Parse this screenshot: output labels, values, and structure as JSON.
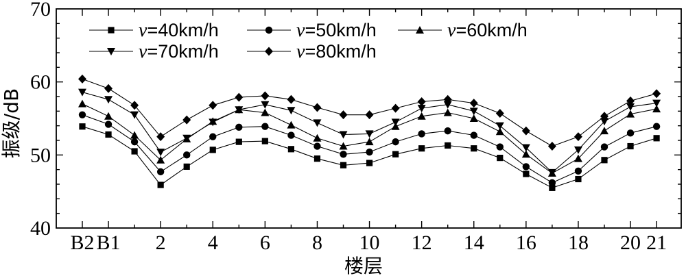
{
  "chart_data": {
    "type": "line",
    "xlabel": "楼层",
    "ylabel": "振级/dB",
    "ylim": [
      40,
      70
    ],
    "yticks": [
      40,
      50,
      60,
      70
    ],
    "categories": [
      "B2",
      "B1",
      "1",
      "2",
      "3",
      "4",
      "5",
      "6",
      "7",
      "8",
      "9",
      "10",
      "11",
      "12",
      "13",
      "14",
      "15",
      "16",
      "17",
      "18",
      "19",
      "20",
      "21"
    ],
    "tick_labels": [
      "B2",
      "B1",
      "",
      "2",
      "",
      "4",
      "",
      "6",
      "",
      "8",
      "",
      "10",
      "",
      "12",
      "",
      "14",
      "",
      "16",
      "",
      "18",
      "",
      "20",
      "21"
    ],
    "legend": {
      "placement": "top-left",
      "columns": 3
    },
    "series": [
      {
        "name": "v=40km/h",
        "var": "v",
        "suffix": "=40km/h",
        "marker": "square",
        "values": [
          53.9,
          52.8,
          50.5,
          45.9,
          48.4,
          50.7,
          51.8,
          51.9,
          50.8,
          49.5,
          48.6,
          48.9,
          50.1,
          50.9,
          51.3,
          50.9,
          49.6,
          47.4,
          45.5,
          46.7,
          49.3,
          51.2,
          52.3
        ]
      },
      {
        "name": "v=50km/h",
        "var": "v",
        "suffix": "=50km/h",
        "marker": "circle",
        "values": [
          55.5,
          54.2,
          51.8,
          47.7,
          50.0,
          52.5,
          53.8,
          53.9,
          52.7,
          51.2,
          50.1,
          50.4,
          51.8,
          52.9,
          53.3,
          52.7,
          51.1,
          48.4,
          46.2,
          47.8,
          51.1,
          53.0,
          53.9
        ]
      },
      {
        "name": "v=60km/h",
        "var": "v",
        "suffix": "=60km/h",
        "marker": "triangle-up",
        "values": [
          57.0,
          55.3,
          52.7,
          49.3,
          52.2,
          54.6,
          56.2,
          55.8,
          54.1,
          52.3,
          51.2,
          51.8,
          53.9,
          55.3,
          55.8,
          55.0,
          53.2,
          50.1,
          47.5,
          49.5,
          53.3,
          55.6,
          56.3
        ]
      },
      {
        "name": "v=70km/h",
        "var": "v",
        "suffix": "=70km/h",
        "marker": "triangle-down",
        "values": [
          58.6,
          57.6,
          55.5,
          50.4,
          52.3,
          54.5,
          56.2,
          56.9,
          56.1,
          54.4,
          52.8,
          52.9,
          54.5,
          56.4,
          56.9,
          56.0,
          54.0,
          51.0,
          47.6,
          50.7,
          54.6,
          56.6,
          57.1
        ]
      },
      {
        "name": "v=80km/h",
        "var": "v",
        "suffix": "=80km/h",
        "marker": "diamond",
        "values": [
          60.4,
          59.1,
          56.8,
          52.5,
          54.8,
          56.8,
          57.9,
          58.1,
          57.6,
          56.5,
          55.5,
          55.5,
          56.4,
          57.3,
          57.6,
          57.1,
          55.7,
          53.3,
          51.2,
          52.5,
          55.3,
          57.4,
          58.4
        ]
      }
    ]
  }
}
